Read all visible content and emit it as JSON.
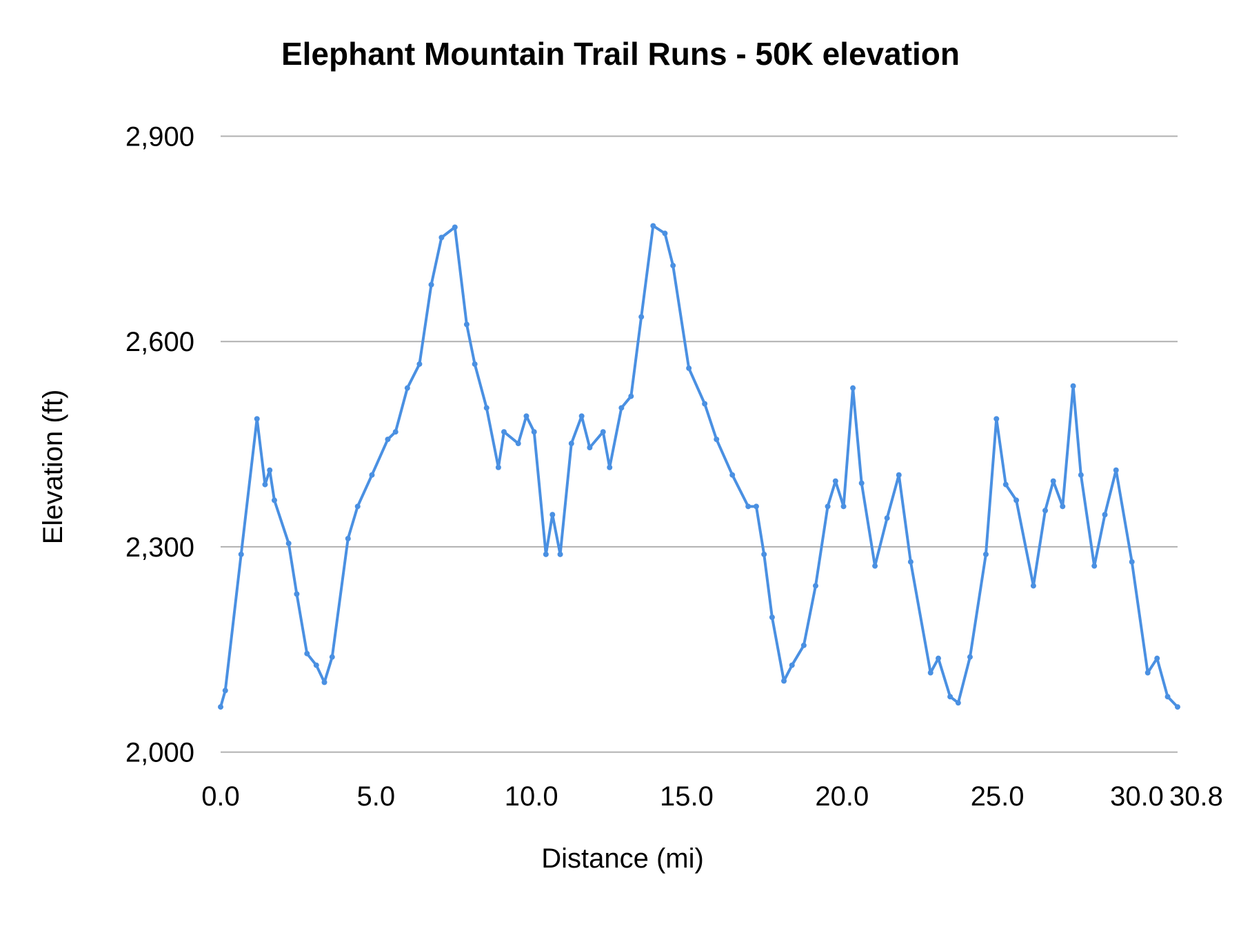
{
  "chart_data": {
    "type": "line",
    "title": "Elephant Mountain Trail Runs - 50K elevation",
    "xlabel": "Distance (mi)",
    "ylabel": "Elevation (ft)",
    "xlim": [
      0,
      30.8
    ],
    "ylim": [
      2000,
      2900
    ],
    "x_ticks": [
      "0.0",
      "5.0",
      "10.0",
      "15.0",
      "20.0",
      "25.0",
      "30.0",
      "30.8"
    ],
    "x_tick_values": [
      0,
      5,
      10,
      15,
      20,
      25,
      30,
      30.8
    ],
    "y_ticks": [
      "2,000",
      "2,300",
      "2,600",
      "2,900"
    ],
    "y_tick_values": [
      2000,
      2300,
      2600,
      2900
    ],
    "grid": "horizontal",
    "line_color": "#4a90e2",
    "grid_color": "#b0b0b0",
    "series": [
      {
        "x": [
          0,
          0.15,
          0.66,
          1.17,
          1.43,
          1.58,
          1.73,
          2.19,
          2.45,
          2.78,
          3.08,
          3.34,
          3.59,
          4.1,
          4.41,
          4.87,
          5.38,
          5.63,
          6.01,
          6.4,
          6.78,
          7.11,
          7.54,
          7.92,
          8.18,
          8.56,
          8.94,
          9.12,
          9.58,
          9.84,
          10.09,
          10.47,
          10.68,
          10.93,
          11.29,
          11.62,
          11.88,
          12.31,
          12.52,
          12.9,
          13.21,
          13.54,
          13.92,
          14.3,
          14.56,
          15.07,
          15.58,
          15.96,
          16.47,
          16.98,
          17.24,
          17.49,
          17.75,
          18.13,
          18.39,
          18.77,
          19.15,
          19.54,
          19.79,
          20.05,
          20.35,
          20.63,
          21.06,
          21.45,
          21.83,
          22.21,
          22.85,
          23.1,
          23.48,
          23.74,
          24.12,
          24.63,
          24.97,
          25.27,
          25.61,
          26.16,
          26.54,
          26.8,
          27.1,
          27.44,
          27.69,
          28.12,
          28.46,
          28.82,
          29.33,
          29.84,
          30.14,
          30.48,
          30.8
        ],
        "y": [
          2066,
          2090,
          2289,
          2487,
          2391,
          2412,
          2368,
          2305,
          2231,
          2144,
          2127,
          2102,
          2139,
          2312,
          2359,
          2405,
          2457,
          2468,
          2532,
          2567,
          2683,
          2752,
          2767,
          2625,
          2567,
          2503,
          2416,
          2468,
          2451,
          2491,
          2468,
          2289,
          2347,
          2289,
          2451,
          2491,
          2445,
          2468,
          2416,
          2503,
          2520,
          2636,
          2769,
          2758,
          2711,
          2561,
          2509,
          2457,
          2405,
          2359,
          2359,
          2289,
          2197,
          2104,
          2127,
          2156,
          2243,
          2359,
          2396,
          2359,
          2532,
          2393,
          2272,
          2342,
          2405,
          2278,
          2116,
          2137,
          2081,
          2072,
          2139,
          2289,
          2487,
          2391,
          2368,
          2243,
          2353,
          2396,
          2359,
          2535,
          2405,
          2272,
          2347,
          2412,
          2278,
          2116,
          2137,
          2081,
          2066
        ]
      }
    ]
  }
}
